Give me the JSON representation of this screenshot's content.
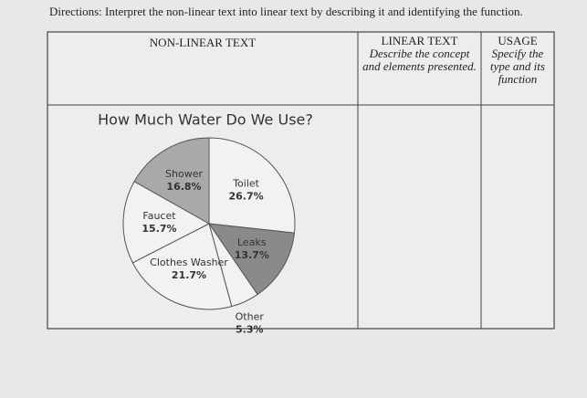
{
  "directions": "Directions: Interpret the non-linear text into linear text by describing it and identifying the function.",
  "table": {
    "headers": [
      {
        "title": "NON-LINEAR TEXT"
      },
      {
        "title": "LINEAR TEXT",
        "note": "Describe the concept and elements presented."
      },
      {
        "title": "USAGE",
        "note": "Specify the type and its function"
      }
    ]
  },
  "chart_data": {
    "type": "pie",
    "title": "How Much Water Do We Use?",
    "categories": [
      "Toilet",
      "Leaks",
      "Other",
      "Clothes Washer",
      "Faucet",
      "Shower"
    ],
    "values": [
      26.7,
      13.7,
      5.3,
      21.7,
      15.7,
      16.8
    ],
    "value_labels": [
      "26.7%",
      "13.7%",
      "5.3%",
      "21.7%",
      "15.7%",
      "16.8%"
    ],
    "colors": [
      "#f2f2f2",
      "#8a8a8a",
      "#f2f2f2",
      "#f2f2f2",
      "#f2f2f2",
      "#a9a9a9"
    ]
  }
}
